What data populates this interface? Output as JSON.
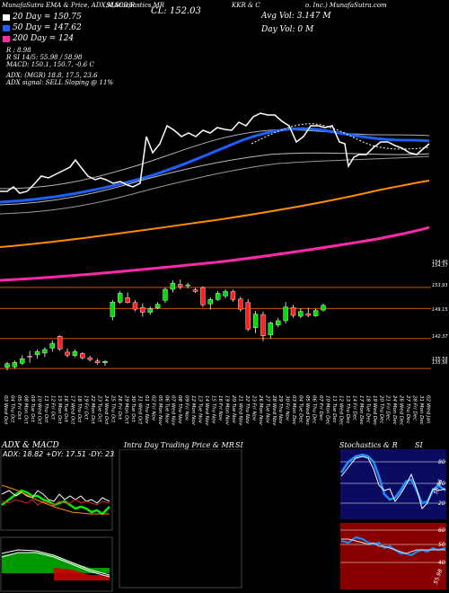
{
  "header": {
    "top_left": "MunafaSutra EMA & Price, ADX,MACD,R",
    "top_mid": "SI,Stochastics,MR",
    "cl_text": "CL: 152.03",
    "symbol_text": "KKR & C",
    "top_right": "o. Inc.) MunafaSutra.com",
    "avg_vol": "Avg Vol: 3.147 M",
    "day_vol": "Day Vol: 0   M"
  },
  "legend": {
    "ema20": "20  Day = 150.75",
    "ema50": "50  Day = 147.62",
    "ema200": "200  Day = 124",
    "r": "R       : 8.98",
    "si": "R      SI 14/5: 55.98 / 58.98",
    "macd": "MACD: 150.1,  150.7,  -0.6  C",
    "adx": "ADX:                     (MGR) 18.8,  17.5,  23.6",
    "adx_signal": "ADX  signal: SELL  Sloping @ 11%"
  },
  "colors": {
    "ema20": "#ffffff",
    "ema50": "#1f5fff",
    "ema200": "#ff2aaa",
    "up": "#00dd00",
    "down": "#ff2020",
    "orange": "#ff8c00",
    "level": "#cc5500"
  },
  "price_levels": [
    "154.40",
    "154.37",
    "153.93",
    "149.15",
    "142.37",
    "135.59",
    "135.56"
  ],
  "dates": [
    "03 Wed Oct",
    "04 Thu Oct",
    "05 Fri Oct",
    "08 Mon Oct",
    "09 Tue Oct",
    "10 Wed Oct",
    "11 Thu Oct",
    "12 Fri Oct",
    "15 Mon Oct",
    "16 Tue Oct",
    "17 Wed Oct",
    "18 Thu Oct",
    "19 Fri Oct",
    "22 Mon Oct",
    "23 Tue Oct",
    "24 Wed Oct",
    "25 Thu Oct",
    "26 Fri Oct",
    "29 Mon Oct",
    "30 Tue Oct",
    "31 Wed Oct",
    "01 Thu Nov",
    "02 Fri Nov",
    "05 Mon Nov",
    "06 Tue Nov",
    "07 Wed Nov",
    "08 Thu Nov",
    "09 Fri Nov",
    "12 Mon Nov",
    "13 Tue Nov",
    "14 Wed Nov",
    "15 Thu Nov",
    "16 Fri Nov",
    "19 Mon Nov",
    "20 Tue Nov",
    "21 Wed Nov",
    "22 Thu Nov",
    "23 Fri Nov",
    "26 Mon Nov",
    "27 Tue Nov",
    "28 Wed Nov",
    "29 Thu Nov",
    "30 Fri Nov",
    "03 Mon Dec",
    "04 Tue Dec",
    "05 Wed Dec",
    "06 Thu Dec",
    "07 Fri Dec",
    "10 Mon Dec",
    "11 Tue Dec",
    "12 Wed Dec",
    "13 Thu Dec",
    "14 Fri Dec",
    "17 Mon Dec",
    "18 Tue Dec",
    "19 Wed Dec",
    "20 Thu Dec",
    "21 Fri Dec",
    "24 Mon Dec",
    "26 Wed Dec",
    "27 Thu Dec",
    "28 Fri Dec",
    "31 Mon Dec",
    "02 Wed Jan"
  ],
  "panels": {
    "adx_title": "ADX  & MACD",
    "adx_values": "ADX: 18.82  +DY: 17.51  -DY: 23.63",
    "intra_title": "Intra  Day Trading Price  & MR",
    "intra_si": "SI",
    "stoch_title": "Stochastics & R",
    "stoch_si": "SI",
    "stoch_levels": [
      "80",
      "50",
      "20"
    ],
    "stoch_value": "55.96",
    "rsi_levels": [
      "60",
      "50",
      "40"
    ],
    "rsi_value": "55.98"
  },
  "chart_data": {
    "type": "candlestick",
    "title": "",
    "candles": [
      {
        "o": 135.9,
        "h": 137.1,
        "l": 135.2,
        "c": 136.7,
        "up": true
      },
      {
        "o": 136.0,
        "h": 137.4,
        "l": 135.5,
        "c": 137.0,
        "up": true
      },
      {
        "o": 136.8,
        "h": 138.6,
        "l": 136.4,
        "c": 137.8,
        "up": true
      },
      {
        "o": 138.4,
        "h": 139.6,
        "l": 136.9,
        "c": 138.2,
        "up": false
      },
      {
        "o": 138.7,
        "h": 139.9,
        "l": 137.8,
        "c": 139.4,
        "up": true
      },
      {
        "o": 139.1,
        "h": 140.4,
        "l": 138.2,
        "c": 139.9,
        "up": true
      },
      {
        "o": 140.2,
        "h": 141.9,
        "l": 139.4,
        "c": 141.3,
        "up": true
      },
      {
        "o": 142.9,
        "h": 143.1,
        "l": 139.6,
        "c": 140.0,
        "up": false
      },
      {
        "o": 139.3,
        "h": 140.1,
        "l": 138.1,
        "c": 138.6,
        "up": false
      },
      {
        "o": 138.5,
        "h": 139.9,
        "l": 138.2,
        "c": 139.4,
        "up": true
      },
      {
        "o": 139.0,
        "h": 139.3,
        "l": 137.6,
        "c": 138.0,
        "up": false
      },
      {
        "o": 138.0,
        "h": 138.5,
        "l": 137.2,
        "c": 137.6,
        "up": false
      },
      {
        "o": 137.3,
        "h": 137.8,
        "l": 136.5,
        "c": 136.9,
        "up": false
      },
      {
        "o": 136.9,
        "h": 137.5,
        "l": 136.2,
        "c": 137.2,
        "up": true
      },
      {
        "o": 147.3,
        "h": 151.1,
        "l": 146.5,
        "c": 150.6,
        "up": true
      },
      {
        "o": 150.6,
        "h": 153.1,
        "l": 150.2,
        "c": 152.6,
        "up": true
      },
      {
        "o": 151.6,
        "h": 152.8,
        "l": 150.3,
        "c": 150.5,
        "up": false
      },
      {
        "o": 150.5,
        "h": 151.1,
        "l": 148.5,
        "c": 149.0,
        "up": false
      },
      {
        "o": 149.4,
        "h": 150.3,
        "l": 147.3,
        "c": 148.3,
        "up": false
      },
      {
        "o": 148.3,
        "h": 149.6,
        "l": 147.7,
        "c": 149.1,
        "up": true
      },
      {
        "o": 149.3,
        "h": 150.6,
        "l": 149.0,
        "c": 150.1,
        "up": true
      },
      {
        "o": 151.0,
        "h": 153.9,
        "l": 150.4,
        "c": 153.5,
        "up": true
      },
      {
        "o": 153.5,
        "h": 155.5,
        "l": 152.8,
        "c": 154.9,
        "up": true
      },
      {
        "o": 154.6,
        "h": 155.7,
        "l": 153.5,
        "c": 154.1,
        "up": false
      },
      {
        "o": 154.3,
        "h": 155.0,
        "l": 153.7,
        "c": 154.5,
        "up": true
      },
      {
        "o": 153.4,
        "h": 153.8,
        "l": 152.7,
        "c": 153.0,
        "up": false
      },
      {
        "o": 153.9,
        "h": 154.2,
        "l": 149.5,
        "c": 150.0,
        "up": false
      },
      {
        "o": 150.2,
        "h": 151.7,
        "l": 148.9,
        "c": 151.2,
        "up": true
      },
      {
        "o": 151.2,
        "h": 153.1,
        "l": 150.9,
        "c": 152.6,
        "up": true
      },
      {
        "o": 152.0,
        "h": 153.5,
        "l": 151.5,
        "c": 153.0,
        "up": true
      },
      {
        "o": 153.0,
        "h": 153.4,
        "l": 150.7,
        "c": 151.2,
        "up": false
      },
      {
        "o": 151.3,
        "h": 151.8,
        "l": 148.5,
        "c": 149.0,
        "up": false
      },
      {
        "o": 150.5,
        "h": 151.3,
        "l": 144.0,
        "c": 144.5,
        "up": false
      },
      {
        "o": 144.8,
        "h": 148.6,
        "l": 143.6,
        "c": 147.9,
        "up": true
      },
      {
        "o": 147.8,
        "h": 148.5,
        "l": 141.8,
        "c": 143.0,
        "up": false
      },
      {
        "o": 143.2,
        "h": 146.2,
        "l": 142.4,
        "c": 145.9,
        "up": true
      },
      {
        "o": 145.4,
        "h": 147.0,
        "l": 144.9,
        "c": 146.4,
        "up": true
      },
      {
        "o": 146.4,
        "h": 150.6,
        "l": 145.8,
        "c": 149.5,
        "up": true
      },
      {
        "o": 149.4,
        "h": 150.0,
        "l": 147.1,
        "c": 147.6,
        "up": false
      },
      {
        "o": 147.4,
        "h": 149.2,
        "l": 147.0,
        "c": 148.5,
        "up": true
      },
      {
        "o": 148.0,
        "h": 149.3,
        "l": 147.2,
        "c": 147.6,
        "up": false
      },
      {
        "o": 147.5,
        "h": 149.1,
        "l": 147.3,
        "c": 148.7,
        "up": true
      },
      {
        "o": 148.8,
        "h": 150.3,
        "l": 148.5,
        "c": 149.9,
        "up": true
      }
    ],
    "price_range": [
      134.0,
      160.0
    ],
    "horizontal_levels": [
      153.93,
      149.15,
      142.37,
      135.59
    ]
  }
}
